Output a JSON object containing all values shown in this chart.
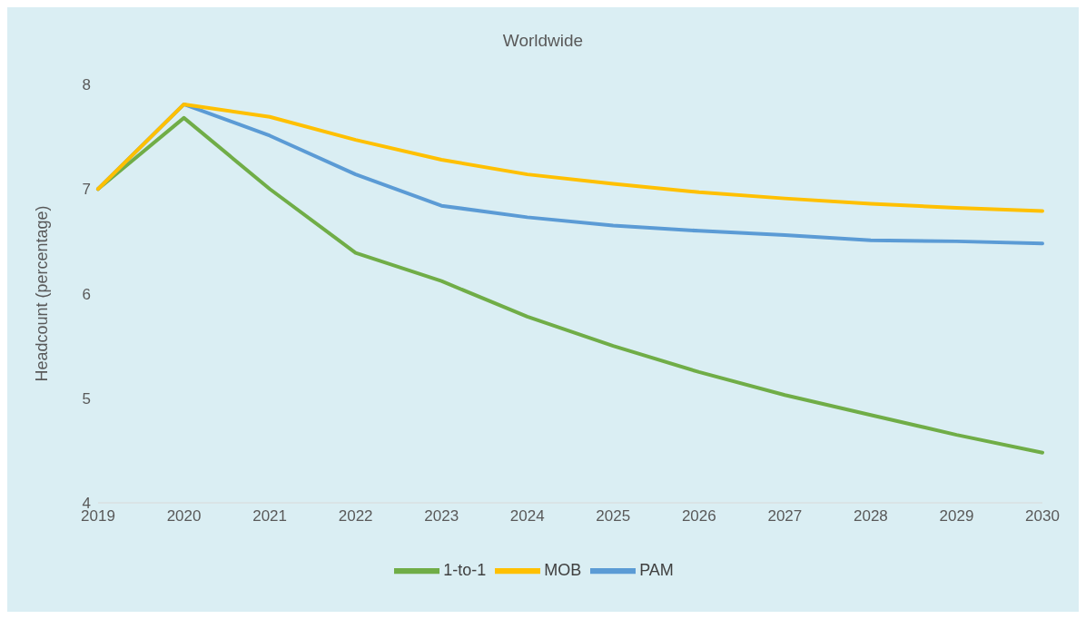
{
  "chart_data": {
    "type": "line",
    "title": "Worldwide",
    "ylabel": "Headcount (percentage)",
    "categories": [
      "2019",
      "2020",
      "2021",
      "2022",
      "2023",
      "2024",
      "2025",
      "2026",
      "2027",
      "2028",
      "2029",
      "2030"
    ],
    "series": [
      {
        "name": "1-to-1",
        "color": "#70ad47",
        "values": [
          7.0,
          7.68,
          7.0,
          6.39,
          6.12,
          5.78,
          5.5,
          5.25,
          5.03,
          4.84,
          4.65,
          4.48
        ]
      },
      {
        "name": "PAM",
        "color": "#5b9bd5",
        "values": [
          7.0,
          7.81,
          7.51,
          7.14,
          6.84,
          6.73,
          6.65,
          6.6,
          6.56,
          6.51,
          6.5,
          6.48
        ]
      },
      {
        "name": "MOB",
        "color": "#ffc000",
        "values": [
          7.0,
          7.81,
          7.69,
          7.47,
          7.28,
          7.14,
          7.05,
          6.97,
          6.91,
          6.86,
          6.82,
          6.79
        ]
      }
    ],
    "ylim": [
      4,
      8
    ],
    "yticks": [
      4,
      5,
      6,
      7,
      8
    ],
    "grid": false,
    "legend": "bottom",
    "marker": "none",
    "line_style": "solid"
  }
}
